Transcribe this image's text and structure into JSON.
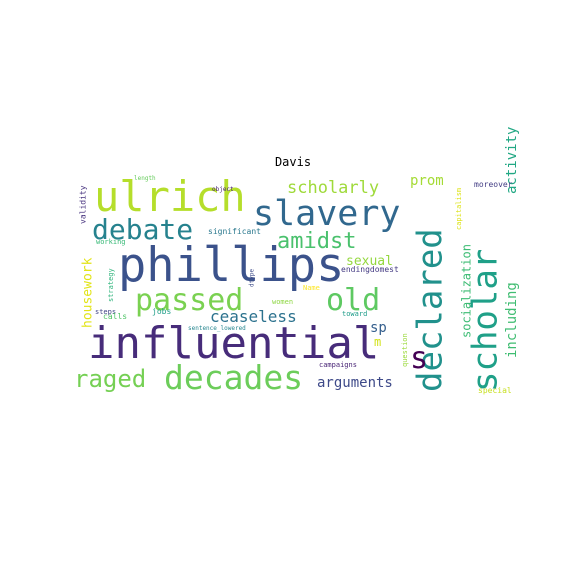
{
  "chart_data": {
    "type": "wordcloud",
    "title": "Davis",
    "words": [
      {
        "text": "influential",
        "color": "#472c7a"
      },
      {
        "text": "phillips",
        "color": "#3b528b"
      },
      {
        "text": "ulrich",
        "color": "#b5de2b"
      },
      {
        "text": "declared",
        "color": "#21918c"
      },
      {
        "text": "scholar",
        "color": "#1fa088"
      },
      {
        "text": "slavery",
        "color": "#31688e"
      },
      {
        "text": "decades",
        "color": "#6ccd5a"
      },
      {
        "text": "passed",
        "color": "#7ad151"
      },
      {
        "text": "debate",
        "color": "#26828e"
      },
      {
        "text": "old",
        "color": "#5ec962"
      },
      {
        "text": "raged",
        "color": "#75d054"
      },
      {
        "text": "amidst",
        "color": "#4ac16d"
      },
      {
        "text": "s",
        "color": "#440154"
      },
      {
        "text": "scholarly",
        "color": "#9fda3a"
      },
      {
        "text": "ceaseless",
        "color": "#2c728e"
      },
      {
        "text": "arguments",
        "color": "#3e4a89"
      },
      {
        "text": "prom",
        "color": "#a5db36"
      },
      {
        "text": "sexual",
        "color": "#95d840"
      },
      {
        "text": "sp",
        "color": "#355f8d"
      },
      {
        "text": "activity",
        "color": "#22a884"
      },
      {
        "text": "including",
        "color": "#40bd72"
      },
      {
        "text": "socialization",
        "color": "#3dbc74"
      },
      {
        "text": "housework",
        "color": "#e2e418"
      },
      {
        "text": "m",
        "color": "#d2e21b"
      },
      {
        "text": "endingdomest",
        "color": "#443a83"
      },
      {
        "text": "significant",
        "color": "#2a788e"
      },
      {
        "text": "working",
        "color": "#38b977"
      },
      {
        "text": "validity",
        "color": "#46327e"
      },
      {
        "text": "strategy",
        "color": "#2fb47c"
      },
      {
        "text": "steps",
        "color": "#414487"
      },
      {
        "text": "calls",
        "color": "#52c569"
      },
      {
        "text": "jobs",
        "color": "#1f9e89"
      },
      {
        "text": "women",
        "color": "#8fd744"
      },
      {
        "text": "Name",
        "color": "#fde725"
      },
      {
        "text": "toward",
        "color": "#1e9c89"
      },
      {
        "text": "campaigns",
        "color": "#482475"
      },
      {
        "text": "question",
        "color": "#9bd93c"
      },
      {
        "text": "special",
        "color": "#c8e020"
      },
      {
        "text": "capitalism",
        "color": "#dde318"
      },
      {
        "text": "moreover",
        "color": "#433d84"
      },
      {
        "text": "length",
        "color": "#67cc5c"
      },
      {
        "text": "object",
        "color": "#482071"
      },
      {
        "text": "dtype",
        "color": "#3e4c8a"
      },
      {
        "text": "sentence_lowered",
        "color": "#25858e"
      }
    ]
  }
}
